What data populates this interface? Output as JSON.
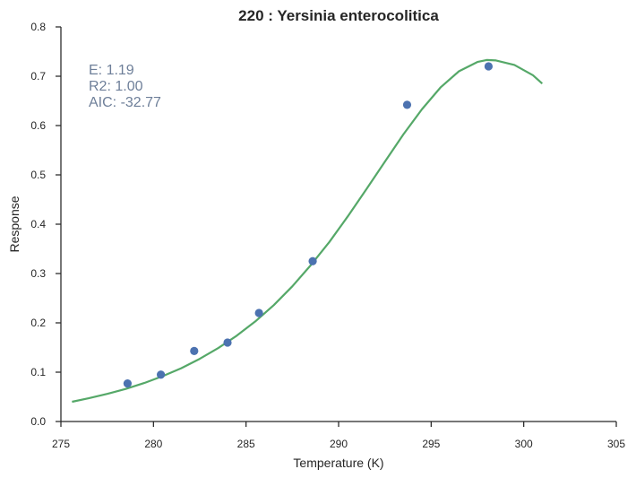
{
  "chart_data": {
    "type": "scatter",
    "title": "220 : Yersinia enterocolitica",
    "xlabel": "Temperature (K)",
    "ylabel": "Response",
    "xlim": [
      275,
      305
    ],
    "ylim": [
      0.0,
      0.8
    ],
    "xticks": [
      "275",
      "280",
      "285",
      "290",
      "295",
      "300",
      "305"
    ],
    "yticks": [
      "0.0",
      "0.1",
      "0.2",
      "0.3",
      "0.4",
      "0.5",
      "0.6",
      "0.7",
      "0.8"
    ],
    "grid": false,
    "stats": [
      "E:  1.19",
      "R2:  1.00",
      "AIC: -32.77"
    ],
    "series": [
      {
        "kind": "points",
        "color": "#4c72b0",
        "x": [
          278.6,
          280.4,
          282.2,
          284.0,
          285.7,
          288.6,
          293.7,
          298.1
        ],
        "y": [
          0.077,
          0.095,
          0.143,
          0.16,
          0.22,
          0.325,
          0.642,
          0.72
        ]
      },
      {
        "kind": "fit-line",
        "color": "#55a868",
        "x": [
          275.6,
          276.5,
          277.5,
          278.5,
          279.5,
          280.5,
          281.5,
          282.5,
          283.5,
          284.5,
          285.5,
          286.5,
          287.5,
          288.5,
          289.5,
          290.5,
          291.5,
          292.5,
          293.5,
          294.5,
          295.5,
          296.5,
          297.5,
          298.0,
          298.5,
          299.5,
          300.5,
          301.0
        ],
        "y": [
          0.04,
          0.047,
          0.056,
          0.066,
          0.078,
          0.092,
          0.108,
          0.127,
          0.149,
          0.174,
          0.203,
          0.236,
          0.274,
          0.317,
          0.364,
          0.416,
          0.471,
          0.527,
          0.582,
          0.633,
          0.677,
          0.71,
          0.729,
          0.733,
          0.732,
          0.723,
          0.702,
          0.685
        ]
      }
    ]
  }
}
